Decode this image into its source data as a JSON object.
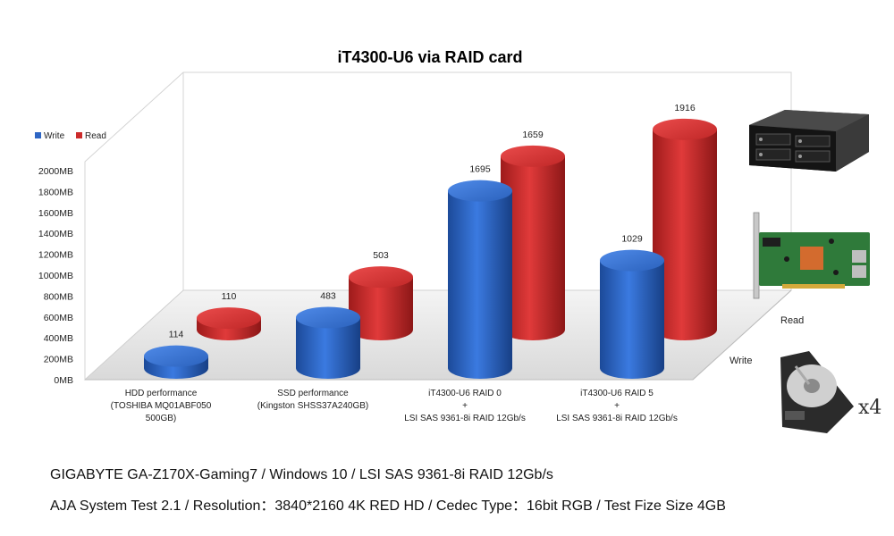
{
  "chart_data": {
    "type": "bar",
    "title": "iT4300-U6 via RAID card",
    "categories": [
      [
        "HDD performance",
        "(TOSHIBA MQ01ABF050",
        "500GB)"
      ],
      [
        "SSD performance",
        "(Kingston SHSS37A240GB)"
      ],
      [
        "iT4300-U6 RAID 0",
        "+",
        "LSI SAS 9361-8i RAID 12Gb/s"
      ],
      [
        "iT4300-U6 RAID 5",
        "+",
        "LSI SAS 9361-8i RAID 12Gb/s"
      ]
    ],
    "series": [
      {
        "name": "Write",
        "color": "#2e66c4",
        "values": [
          114,
          483,
          1695,
          1029
        ]
      },
      {
        "name": "Read",
        "color": "#cc2b2b",
        "values": [
          110,
          503,
          1659,
          1916
        ]
      }
    ],
    "ylim": [
      0,
      2000
    ],
    "yticks": [
      "0MB",
      "200MB",
      "400MB",
      "600MB",
      "800MB",
      "1000MB",
      "1200MB",
      "1400MB",
      "1600MB",
      "1800MB",
      "2000MB"
    ],
    "depth_labels": [
      "Read",
      "Write"
    ],
    "legend": "top-left",
    "grid": false
  },
  "footer": {
    "line1": "GIGABYTE GA-Z170X-Gaming7 / Windows 10 / LSI SAS 9361-8i RAID 12Gb/s",
    "line2": "AJA System Test 2.1 / Resolution：3840*2160 4K RED HD / Cedec Type：16bit RGB / Test Fize Size 4GB"
  },
  "images": {
    "multiplier": "x4",
    "icons": [
      "hdd-enclosure-icon",
      "raid-card-icon",
      "hard-drive-icon"
    ]
  }
}
